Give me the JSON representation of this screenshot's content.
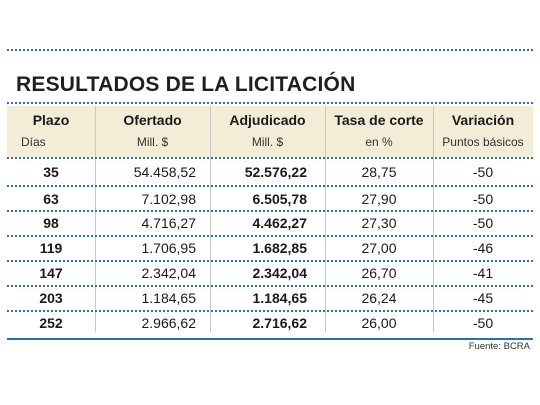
{
  "title": "RESULTADOS DE LA LICITACIÓN",
  "columns": [
    {
      "header": "Plazo",
      "sub": "Días"
    },
    {
      "header": "Ofertado",
      "sub": "Mill. $"
    },
    {
      "header": "Adjudicado",
      "sub": "Mill. $"
    },
    {
      "header": "Tasa de corte",
      "sub": "en %"
    },
    {
      "header": "Variación",
      "sub": "Puntos básicos"
    }
  ],
  "rows": [
    [
      "35",
      "54.458,52",
      "52.576,22",
      "28,75",
      "-50"
    ],
    [
      "63",
      "7.102,98",
      "6.505,78",
      "27,90",
      "-50"
    ],
    [
      "98",
      "4.716,27",
      "4.462,27",
      "27,30",
      "-50"
    ],
    [
      "119",
      "1.706,95",
      "1.682,85",
      "27,00",
      "-46"
    ],
    [
      "147",
      "2.342,04",
      "2.342,04",
      "26,70",
      "-41"
    ],
    [
      "203",
      "1.184,65",
      "1.184,65",
      "26,24",
      "-45"
    ],
    [
      "252",
      "2.966,62",
      "2.716,62",
      "26,00",
      "-50"
    ]
  ],
  "source": "Fuente: BCRA",
  "colors": {
    "rule": "#2a6fb3",
    "header_bg": "#f3ecd6"
  }
}
